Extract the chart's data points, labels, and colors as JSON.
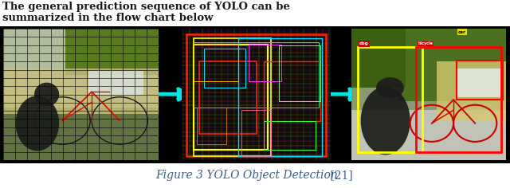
{
  "title_italic": "Figure 3 YOLO Object Detection",
  "title_normal": " [21]",
  "header_line1": "The general prediction sequence of YOLO can be",
  "header_line2": "summarized in the flow chart below",
  "bg_color": "#000000",
  "border_color": "#00e5e5",
  "arrow_color": "#00e5e5",
  "fig_width": 6.4,
  "fig_height": 2.36,
  "title_color": "#3a6090",
  "header_color": "#1a1a1a",
  "header_fontsize": 9.5,
  "title_fontsize": 10,
  "panel1_bg": "#5a6a30",
  "panel2_bg": "#050505",
  "panel3_bg": "#7a8a50"
}
